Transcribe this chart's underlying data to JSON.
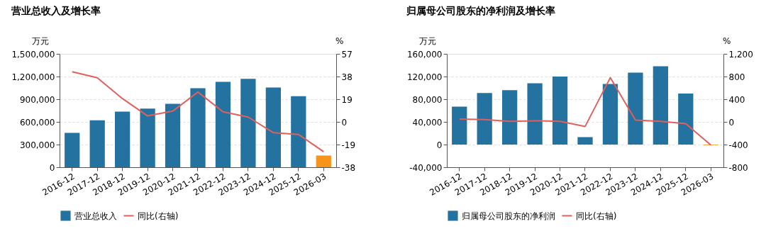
{
  "chart_data": [
    {
      "type": "bar",
      "title": "营业总收入及增长率",
      "ylabel": "万元",
      "y2label": "%",
      "categories": [
        "2016-12",
        "2017-12",
        "2018-12",
        "2019-12",
        "2020-12",
        "2021-12",
        "2022-12",
        "2023-12",
        "2024-12",
        "2025-12",
        "2026-03"
      ],
      "series": [
        {
          "name": "营业总收入",
          "type": "bar",
          "color": "#23729f",
          "colors": [
            "#23729f",
            "#23729f",
            "#23729f",
            "#23729f",
            "#23729f",
            "#23729f",
            "#23729f",
            "#23729f",
            "#23729f",
            "#23729f",
            "#f7941d"
          ],
          "values": [
            455000,
            620000,
            735000,
            775000,
            840000,
            1045000,
            1130000,
            1170000,
            1055000,
            940000,
            155000
          ]
        },
        {
          "name": "同比(右轴)",
          "type": "line",
          "axis": "y2",
          "color": "#e0605e",
          "values": [
            42,
            37,
            19.5,
            5,
            9,
            25,
            8.5,
            4,
            -9,
            -10.5,
            -25
          ]
        }
      ],
      "ylim": [
        0,
        1500000
      ],
      "yticks": [
        0,
        {
          "value": 300000,
          "label": "300,000"
        },
        {
          "value": 600000,
          "label": "600,000"
        },
        {
          "value": 900000,
          "label": "900,000"
        },
        {
          "value": 1200000,
          "label": "1,200,000"
        },
        {
          "value": 1500000,
          "label": "1,500,000"
        }
      ],
      "y2lim": [
        -38,
        57
      ],
      "y2ticks": [
        -38,
        -19,
        0,
        19,
        38,
        57
      ],
      "grid": "y",
      "legend": "bottom"
    },
    {
      "type": "bar",
      "title": "归属母公司股东的净利润及增长率",
      "ylabel": "万元",
      "y2label": "%",
      "categories": [
        "2016-12",
        "2017-12",
        "2018-12",
        "2019-12",
        "2020-12",
        "2021-12",
        "2022-12",
        "2023-12",
        "2024-12",
        "2025-12",
        "2026-03"
      ],
      "series": [
        {
          "name": "归属母公司股东的净利润",
          "type": "bar",
          "color": "#23729f",
          "colors": [
            "#23729f",
            "#23729f",
            "#23729f",
            "#23729f",
            "#23729f",
            "#23729f",
            "#23729f",
            "#23729f",
            "#23729f",
            "#23729f",
            "#f7941d"
          ],
          "values": [
            67000,
            91000,
            96000,
            108000,
            120000,
            13000,
            107000,
            127000,
            138000,
            90000,
            -1000
          ]
        },
        {
          "name": "同比(右轴)",
          "type": "line",
          "axis": "y2",
          "color": "#e0605e",
          "values": [
            50,
            40,
            10,
            20,
            10,
            -80,
            780,
            30,
            10,
            -30,
            -410
          ]
        }
      ],
      "ylim": [
        -40000,
        160000
      ],
      "yticks": [
        {
          "value": -40000,
          "label": "-40,000"
        },
        0,
        {
          "value": 40000,
          "label": "40,000"
        },
        {
          "value": 80000,
          "label": "80,000"
        },
        {
          "value": 120000,
          "label": "120,000"
        },
        {
          "value": 160000,
          "label": "160,000"
        }
      ],
      "y2lim": [
        -800,
        1200
      ],
      "y2ticks": [
        -800,
        -400,
        0,
        400,
        800,
        {
          "value": 1200,
          "label": "1,200"
        }
      ],
      "grid": "y",
      "legend": "bottom"
    }
  ]
}
